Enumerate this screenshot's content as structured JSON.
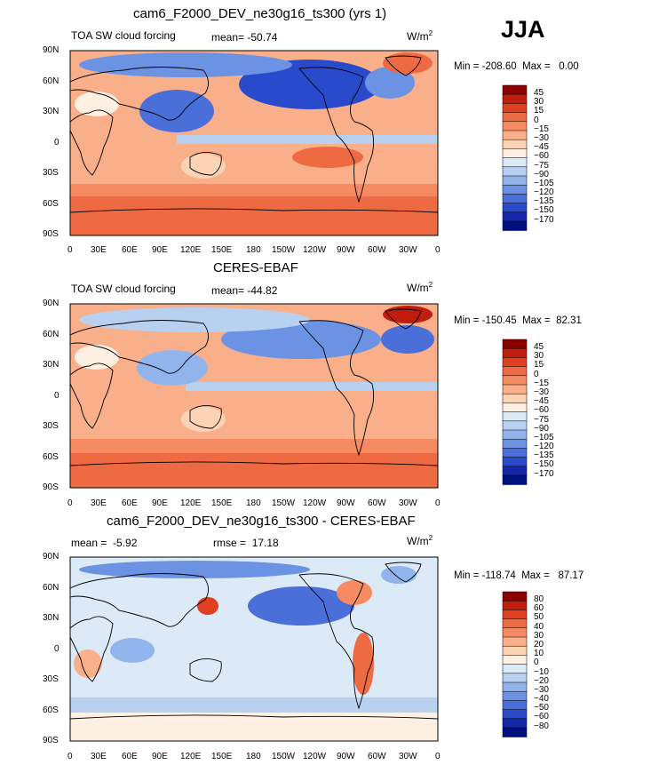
{
  "season": "JJA",
  "units_main": "W/m",
  "units_exp": "2",
  "lat_ticks": [
    "90N",
    "60N",
    "30N",
    "0",
    "30S",
    "60S",
    "90S"
  ],
  "lon_ticks": [
    "0",
    "30E",
    "60E",
    "90E",
    "120E",
    "150E",
    "180",
    "150W",
    "120W",
    "90W",
    "60W",
    "30W",
    "0"
  ],
  "colors": {
    "abs": [
      "#8b0000",
      "#c01d0f",
      "#e0401f",
      "#ee6a42",
      "#f68b62",
      "#f9b08a",
      "#fbd3b5",
      "#fdf0e3",
      "#dce9f7",
      "#b9d1f1",
      "#92b4ec",
      "#6c93e3",
      "#4a6fd9",
      "#2a4acc",
      "#1526a8",
      "#001080"
    ],
    "diff": [
      "#8b0000",
      "#c01d0f",
      "#e0401f",
      "#ee6a42",
      "#f68b62",
      "#f9b08a",
      "#fbd3b5",
      "#fdf0e3",
      "#dce9f7",
      "#b9d1f1",
      "#92b4ec",
      "#6c93e3",
      "#4a6fd9",
      "#2a4acc",
      "#1526a8",
      "#001080"
    ]
  },
  "panels": [
    {
      "title": "cam6_F2000_DEV_ne30g16_ts300 (yrs 1)",
      "left_label": "TOA SW cloud forcing",
      "mean_label": "mean=",
      "mean_value": "-50.74",
      "min_label": "Min =",
      "min_value": "-208.60",
      "max_label": "Max =",
      "max_value": "0.00",
      "colorbar": [
        "45",
        "30",
        "15",
        "0",
        "−15",
        "−30",
        "−45",
        "−60",
        "−75",
        "−90",
        "−105",
        "−120",
        "−135",
        "−150",
        "−170"
      ],
      "scheme": "abs",
      "base_color": "#f9b08a"
    },
    {
      "title": "CERES-EBAF",
      "left_label": "TOA SW cloud forcing",
      "mean_label": "mean=",
      "mean_value": "-44.82",
      "min_label": "Min =",
      "min_value": "-150.45",
      "max_label": "Max =",
      "max_value": "82.31",
      "colorbar": [
        "45",
        "30",
        "15",
        "0",
        "−15",
        "−30",
        "−45",
        "−60",
        "−75",
        "−90",
        "−105",
        "−120",
        "−135",
        "−150",
        "−170"
      ],
      "scheme": "abs",
      "base_color": "#f9b08a"
    },
    {
      "title": "cam6_F2000_DEV_ne30g16_ts300 - CERES-EBAF",
      "left_label": "mean =",
      "left_value": "-5.92",
      "mean_label": "rmse =",
      "mean_value": "17.18",
      "min_label": "Min =",
      "min_value": "-118.74",
      "max_label": "Max =",
      "max_value": "87.17",
      "colorbar": [
        "80",
        "60",
        "50",
        "40",
        "30",
        "20",
        "10",
        "0",
        "−10",
        "−20",
        "−30",
        "−40",
        "−50",
        "−60",
        "−80"
      ],
      "scheme": "diff",
      "base_color": "#dce9f7"
    }
  ]
}
